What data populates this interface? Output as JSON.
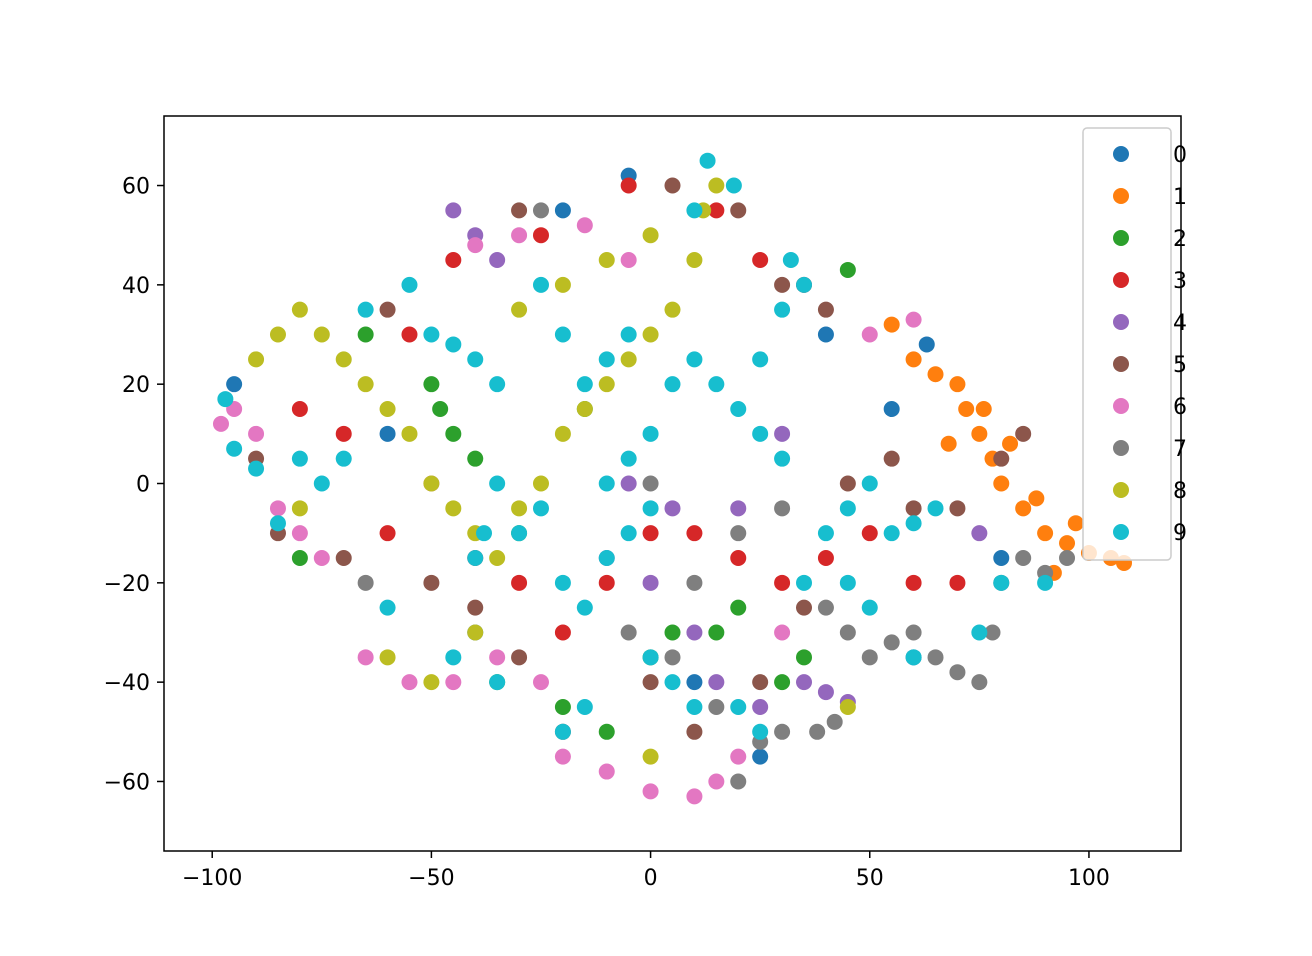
{
  "chart_data": {
    "type": "scatter",
    "title": "",
    "xlabel": "",
    "ylabel": "",
    "xlim": [
      -111,
      121
    ],
    "ylim": [
      -74,
      74
    ],
    "x_ticks": [
      -100,
      -50,
      0,
      50,
      100
    ],
    "x_tick_labels": [
      "−100",
      "−50",
      "0",
      "50",
      "100"
    ],
    "y_ticks": [
      -60,
      -40,
      -20,
      0,
      20,
      40,
      60
    ],
    "y_tick_labels": [
      "−60",
      "−40",
      "−20",
      "0",
      "20",
      "40",
      "60"
    ],
    "grid": false,
    "legend_position": "upper right",
    "series": [
      {
        "name": "0",
        "color": "#1f77b4",
        "values": [
          [
            -95,
            20
          ],
          [
            -60,
            10
          ],
          [
            -20,
            55
          ],
          [
            10,
            -40
          ],
          [
            40,
            30
          ],
          [
            55,
            15
          ],
          [
            63,
            28
          ],
          [
            60,
            -35
          ],
          [
            25,
            -55
          ],
          [
            -40,
            -30
          ],
          [
            80,
            -15
          ],
          [
            -5,
            62
          ]
        ]
      },
      {
        "name": "1",
        "color": "#ff7f0e",
        "values": [
          [
            55,
            32
          ],
          [
            60,
            25
          ],
          [
            65,
            22
          ],
          [
            70,
            20
          ],
          [
            72,
            15
          ],
          [
            75,
            10
          ],
          [
            78,
            5
          ],
          [
            80,
            0
          ],
          [
            85,
            -5
          ],
          [
            90,
            -10
          ],
          [
            95,
            -12
          ],
          [
            100,
            -14
          ],
          [
            105,
            -15
          ],
          [
            108,
            -16
          ],
          [
            92,
            -18
          ],
          [
            88,
            -3
          ],
          [
            82,
            8
          ],
          [
            76,
            15
          ],
          [
            68,
            8
          ],
          [
            97,
            -8
          ]
        ]
      },
      {
        "name": "2",
        "color": "#2ca02c",
        "values": [
          [
            -50,
            20
          ],
          [
            -48,
            15
          ],
          [
            -45,
            10
          ],
          [
            -40,
            5
          ],
          [
            -30,
            -10
          ],
          [
            -35,
            -40
          ],
          [
            -20,
            -45
          ],
          [
            -10,
            -50
          ],
          [
            0,
            -35
          ],
          [
            20,
            -25
          ],
          [
            30,
            -40
          ],
          [
            45,
            43
          ],
          [
            -80,
            -15
          ],
          [
            -65,
            30
          ],
          [
            5,
            -30
          ],
          [
            15,
            -30
          ],
          [
            -15,
            15
          ],
          [
            35,
            -35
          ]
        ]
      },
      {
        "name": "3",
        "color": "#d62728",
        "values": [
          [
            -80,
            15
          ],
          [
            -70,
            10
          ],
          [
            -60,
            -10
          ],
          [
            -40,
            -15
          ],
          [
            -30,
            -20
          ],
          [
            -20,
            -30
          ],
          [
            -10,
            -20
          ],
          [
            0,
            -10
          ],
          [
            10,
            -10
          ],
          [
            20,
            -15
          ],
          [
            30,
            -20
          ],
          [
            40,
            -15
          ],
          [
            50,
            -10
          ],
          [
            60,
            -20
          ],
          [
            70,
            -20
          ],
          [
            -55,
            30
          ],
          [
            -45,
            45
          ],
          [
            -25,
            50
          ],
          [
            -5,
            60
          ],
          [
            15,
            55
          ],
          [
            25,
            45
          ],
          [
            35,
            40
          ]
        ]
      },
      {
        "name": "4",
        "color": "#9467bd",
        "values": [
          [
            -45,
            55
          ],
          [
            -40,
            50
          ],
          [
            -35,
            45
          ],
          [
            -10,
            -15
          ],
          [
            0,
            -20
          ],
          [
            10,
            -30
          ],
          [
            15,
            -40
          ],
          [
            25,
            -45
          ],
          [
            35,
            -40
          ],
          [
            40,
            -42
          ],
          [
            45,
            -44
          ],
          [
            20,
            -5
          ],
          [
            5,
            -5
          ],
          [
            -5,
            0
          ],
          [
            30,
            10
          ],
          [
            75,
            -10
          ]
        ]
      },
      {
        "name": "5",
        "color": "#8c564b",
        "values": [
          [
            -90,
            5
          ],
          [
            -85,
            -10
          ],
          [
            -70,
            -15
          ],
          [
            -50,
            -20
          ],
          [
            -40,
            -25
          ],
          [
            -30,
            -35
          ],
          [
            -20,
            -50
          ],
          [
            0,
            -40
          ],
          [
            10,
            -50
          ],
          [
            25,
            -40
          ],
          [
            35,
            -25
          ],
          [
            45,
            0
          ],
          [
            55,
            5
          ],
          [
            70,
            -5
          ],
          [
            80,
            5
          ],
          [
            85,
            10
          ],
          [
            20,
            55
          ],
          [
            30,
            40
          ],
          [
            40,
            35
          ],
          [
            60,
            -5
          ],
          [
            -60,
            35
          ],
          [
            -30,
            55
          ],
          [
            5,
            60
          ]
        ]
      },
      {
        "name": "6",
        "color": "#e377c2",
        "values": [
          [
            -98,
            12
          ],
          [
            -95,
            15
          ],
          [
            -90,
            10
          ],
          [
            -85,
            -5
          ],
          [
            -80,
            -10
          ],
          [
            -75,
            -15
          ],
          [
            -65,
            -35
          ],
          [
            -55,
            -40
          ],
          [
            -45,
            -40
          ],
          [
            -35,
            -35
          ],
          [
            -25,
            -40
          ],
          [
            -20,
            -55
          ],
          [
            -10,
            -58
          ],
          [
            0,
            -62
          ],
          [
            10,
            -63
          ],
          [
            15,
            -60
          ],
          [
            20,
            -55
          ],
          [
            -40,
            48
          ],
          [
            -30,
            50
          ],
          [
            -15,
            52
          ],
          [
            -5,
            45
          ],
          [
            50,
            30
          ],
          [
            60,
            33
          ],
          [
            30,
            -30
          ],
          [
            -50,
            0
          ]
        ]
      },
      {
        "name": "7",
        "color": "#7f7f7f",
        "values": [
          [
            10,
            -20
          ],
          [
            20,
            -10
          ],
          [
            30,
            -5
          ],
          [
            40,
            -25
          ],
          [
            45,
            -30
          ],
          [
            50,
            -35
          ],
          [
            55,
            -32
          ],
          [
            60,
            -30
          ],
          [
            65,
            -35
          ],
          [
            70,
            -38
          ],
          [
            75,
            -40
          ],
          [
            78,
            -30
          ],
          [
            80,
            -20
          ],
          [
            85,
            -15
          ],
          [
            90,
            -18
          ],
          [
            95,
            -15
          ],
          [
            30,
            -50
          ],
          [
            38,
            -50
          ],
          [
            42,
            -48
          ],
          [
            25,
            -52
          ],
          [
            -5,
            -30
          ],
          [
            5,
            -35
          ],
          [
            15,
            -45
          ],
          [
            20,
            -60
          ],
          [
            -25,
            55
          ],
          [
            -65,
            -20
          ],
          [
            0,
            0
          ]
        ]
      },
      {
        "name": "8",
        "color": "#bcbd22",
        "values": [
          [
            -90,
            25
          ],
          [
            -85,
            30
          ],
          [
            -80,
            35
          ],
          [
            -75,
            30
          ],
          [
            -70,
            25
          ],
          [
            -65,
            20
          ],
          [
            -60,
            15
          ],
          [
            -55,
            10
          ],
          [
            -50,
            0
          ],
          [
            -45,
            -5
          ],
          [
            -40,
            -10
          ],
          [
            -35,
            -15
          ],
          [
            -30,
            -5
          ],
          [
            -25,
            0
          ],
          [
            -20,
            10
          ],
          [
            -15,
            15
          ],
          [
            -10,
            20
          ],
          [
            -5,
            25
          ],
          [
            0,
            30
          ],
          [
            5,
            35
          ],
          [
            10,
            45
          ],
          [
            12,
            55
          ],
          [
            15,
            60
          ],
          [
            -30,
            35
          ],
          [
            -20,
            40
          ],
          [
            -10,
            45
          ],
          [
            0,
            50
          ],
          [
            -60,
            -35
          ],
          [
            -50,
            -40
          ],
          [
            -40,
            -30
          ],
          [
            0,
            -55
          ],
          [
            45,
            -45
          ],
          [
            -80,
            -5
          ]
        ]
      },
      {
        "name": "9",
        "color": "#17becf",
        "values": [
          [
            -97,
            17
          ],
          [
            -95,
            7
          ],
          [
            -90,
            3
          ],
          [
            -85,
            -8
          ],
          [
            -80,
            5
          ],
          [
            -75,
            0
          ],
          [
            -70,
            5
          ],
          [
            -65,
            35
          ],
          [
            -55,
            40
          ],
          [
            -50,
            30
          ],
          [
            -45,
            28
          ],
          [
            -40,
            25
          ],
          [
            -35,
            20
          ],
          [
            -35,
            0
          ],
          [
            -38,
            -10
          ],
          [
            -40,
            -15
          ],
          [
            -30,
            -10
          ],
          [
            -25,
            -5
          ],
          [
            -20,
            -20
          ],
          [
            -15,
            -25
          ],
          [
            -10,
            -15
          ],
          [
            -5,
            -10
          ],
          [
            0,
            10
          ],
          [
            5,
            20
          ],
          [
            10,
            25
          ],
          [
            15,
            20
          ],
          [
            20,
            15
          ],
          [
            25,
            25
          ],
          [
            30,
            35
          ],
          [
            32,
            45
          ],
          [
            35,
            40
          ],
          [
            25,
            10
          ],
          [
            30,
            5
          ],
          [
            40,
            -10
          ],
          [
            45,
            -5
          ],
          [
            50,
            0
          ],
          [
            55,
            -10
          ],
          [
            60,
            -8
          ],
          [
            65,
            -5
          ],
          [
            10,
            55
          ],
          [
            13,
            65
          ],
          [
            19,
            60
          ],
          [
            -5,
            30
          ],
          [
            -10,
            25
          ],
          [
            -15,
            20
          ],
          [
            -20,
            30
          ],
          [
            -25,
            40
          ],
          [
            -35,
            -40
          ],
          [
            -45,
            -35
          ],
          [
            -60,
            -25
          ],
          [
            -20,
            -50
          ],
          [
            -15,
            -45
          ],
          [
            0,
            -35
          ],
          [
            5,
            -40
          ],
          [
            10,
            -45
          ],
          [
            20,
            -45
          ],
          [
            25,
            -50
          ],
          [
            35,
            -20
          ],
          [
            45,
            -20
          ],
          [
            50,
            -25
          ],
          [
            60,
            -35
          ],
          [
            75,
            -30
          ],
          [
            80,
            -20
          ],
          [
            90,
            -20
          ],
          [
            0,
            -5
          ],
          [
            -5,
            5
          ],
          [
            -10,
            0
          ]
        ]
      }
    ]
  }
}
